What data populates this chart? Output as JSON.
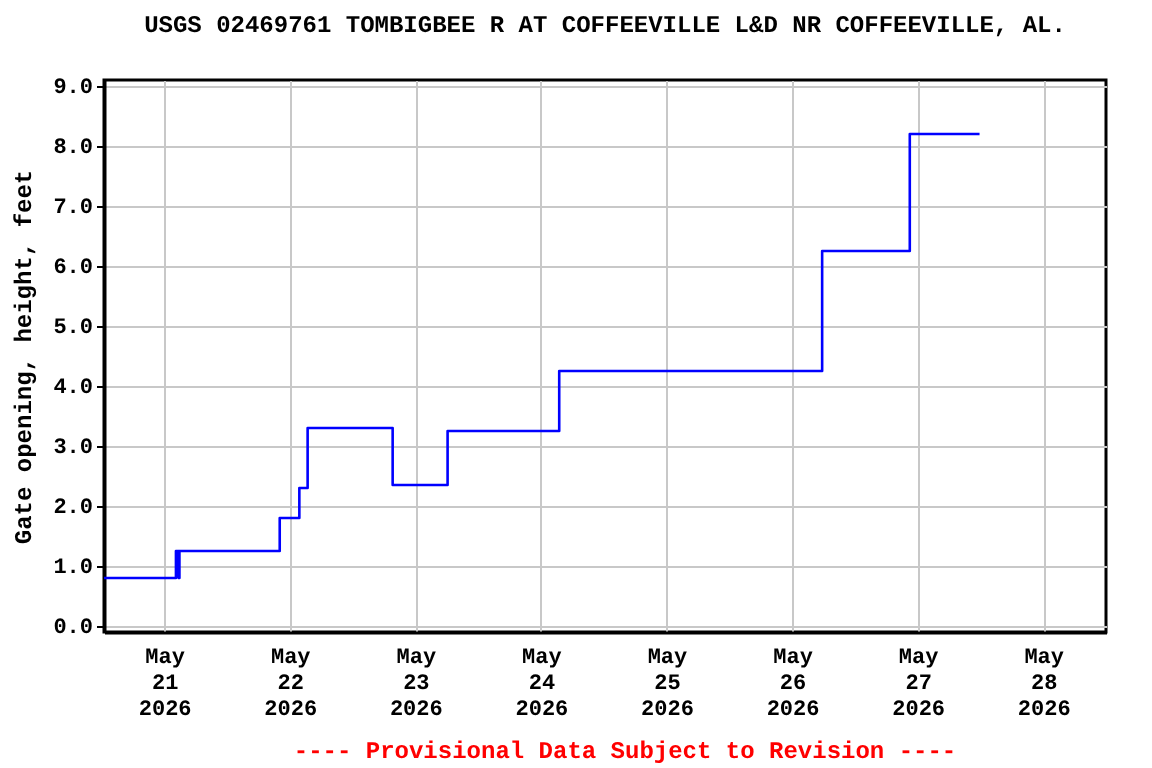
{
  "chart_data": {
    "type": "step",
    "title": "USGS 02469761 TOMBIGBEE R AT COFFEEVILLE L&D NR COFFEEVILLE, AL.",
    "ylabel": "Gate opening, height, feet",
    "x": [
      "2026-05-20T12:30",
      "2026-05-21T02:15",
      "2026-05-21T02:45",
      "2026-05-21T02:55",
      "2026-05-21T22:05",
      "2026-05-22T01:50",
      "2026-05-22T03:25",
      "2026-05-22T19:40",
      "2026-05-23T06:10",
      "2026-05-24T03:30",
      "2026-05-26T05:45",
      "2026-05-26T22:30",
      "2026-05-27T11:50"
    ],
    "series": [
      {
        "color": "#0000ff",
        "values": [
          0.8,
          1.25,
          0.8,
          1.25,
          1.8,
          2.3,
          3.3,
          2.35,
          3.25,
          4.25,
          6.25,
          8.2,
          8.2
        ]
      }
    ],
    "xlim": [
      "2026-05-20T12:30",
      "2026-05-28T12:00"
    ],
    "xticks": [
      {
        "value": "2026-05-21T00:00",
        "label": "May\n21\n2026"
      },
      {
        "value": "2026-05-22T00:00",
        "label": "May\n22\n2026"
      },
      {
        "value": "2026-05-23T00:00",
        "label": "May\n23\n2026"
      },
      {
        "value": "2026-05-24T00:00",
        "label": "May\n24\n2026"
      },
      {
        "value": "2026-05-25T00:00",
        "label": "May\n25\n2026"
      },
      {
        "value": "2026-05-26T00:00",
        "label": "May\n26\n2026"
      },
      {
        "value": "2026-05-27T00:00",
        "label": "May\n27\n2026"
      },
      {
        "value": "2026-05-28T00:00",
        "label": "May\n28\n2026"
      }
    ],
    "ylim": [
      -0.1,
      9.1
    ],
    "yticks": [
      {
        "value": 0,
        "label": "0.0"
      },
      {
        "value": 1,
        "label": "1.0"
      },
      {
        "value": 2,
        "label": "2.0"
      },
      {
        "value": 3,
        "label": "3.0"
      },
      {
        "value": 4,
        "label": "4.0"
      },
      {
        "value": 5,
        "label": "5.0"
      },
      {
        "value": 6,
        "label": "6.0"
      },
      {
        "value": 7,
        "label": "7.0"
      },
      {
        "value": 8,
        "label": "8.0"
      },
      {
        "value": 9,
        "label": "9.0"
      }
    ],
    "grid": true,
    "annotations": [
      "---- Provisional Data Subject to Revision ----"
    ]
  }
}
